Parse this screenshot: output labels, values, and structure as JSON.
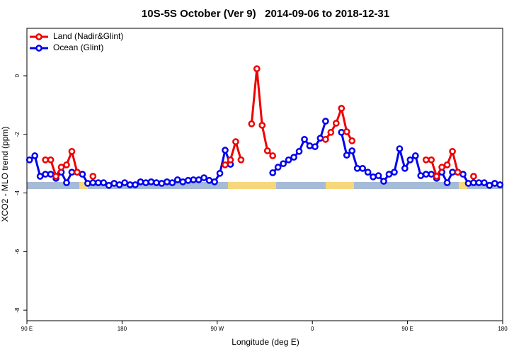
{
  "chart_data": {
    "type": "line",
    "title": "10S-5S October (Ver 9)   2014-09-06 to 2018-12-31",
    "x_label": "Longitude (deg E)",
    "y_label": "XCO2 - MLO trend (ppm)",
    "xlim": [
      90,
      540
    ],
    "xticks": [
      {
        "value": 90,
        "label": "90 E"
      },
      180,
      {
        "value": 270,
        "label": "90 W"
      },
      {
        "value": 360,
        "label": "0"
      },
      {
        "value": 450,
        "label": "90 E"
      },
      {
        "value": 540,
        "label": "180"
      }
    ],
    "ylim": [
      -8.36,
      1.62
    ],
    "yticks": [
      0,
      -2,
      -4,
      -6,
      -8
    ],
    "legend": "top-left",
    "x": [
      92.5,
      97.5,
      102.5,
      107.5,
      112.5,
      117.5,
      122.5,
      127.5,
      132.5,
      137.5,
      142.5,
      147.5,
      152.5,
      157.5,
      162.5,
      167.5,
      172.5,
      177.5,
      182.5,
      187.5,
      192.5,
      197.5,
      202.5,
      207.5,
      212.5,
      217.5,
      222.5,
      227.5,
      232.5,
      237.5,
      242.5,
      247.5,
      252.5,
      257.5,
      262.5,
      267.5,
      272.5,
      277.5,
      282.5,
      287.5,
      292.5,
      297.5,
      302.5,
      307.5,
      312.5,
      317.5,
      322.5,
      327.5,
      332.5,
      337.5,
      342.5,
      347.5,
      352.5,
      357.5,
      362.5,
      367.5,
      372.5,
      377.5,
      382.5,
      387.5,
      392.5,
      397.5,
      402.5,
      407.5,
      412.5,
      417.5,
      422.5,
      427.5,
      432.5,
      437.5,
      442.5,
      447.5,
      452.5,
      457.5,
      462.5,
      467.5,
      472.5,
      477.5,
      482.5,
      487.5,
      492.5,
      497.5,
      502.5,
      507.5,
      512.5,
      517.5,
      522.5,
      527.5,
      532.5,
      537.5
    ],
    "series": [
      {
        "name": "Ocean (Glint)",
        "color": "#0000ee",
        "values": [
          -2.87,
          -2.73,
          -3.43,
          -3.36,
          -3.36,
          -3.5,
          -3.29,
          -3.65,
          -3.29,
          -3.29,
          -3.36,
          -3.67,
          -3.65,
          -3.65,
          -3.65,
          -3.74,
          -3.67,
          -3.72,
          -3.65,
          -3.72,
          -3.72,
          -3.62,
          -3.65,
          -3.62,
          -3.65,
          -3.67,
          -3.62,
          -3.65,
          -3.55,
          -3.62,
          -3.57,
          -3.55,
          -3.55,
          -3.48,
          -3.57,
          -3.62,
          -3.33,
          -2.54,
          -3.02,
          null,
          null,
          null,
          null,
          null,
          null,
          null,
          -3.31,
          -3.12,
          -3.0,
          -2.87,
          -2.78,
          -2.58,
          -2.17,
          -2.39,
          -2.42,
          -2.13,
          -1.55,
          null,
          null,
          -1.93,
          -2.71,
          -2.56,
          -3.16,
          -3.16,
          -3.29,
          -3.45,
          -3.41,
          -3.6,
          -3.36,
          -3.29,
          -2.49,
          -3.16,
          -2.87,
          -2.73,
          -3.41,
          -3.36,
          -3.36,
          -3.5,
          -3.29,
          -3.65,
          -3.29,
          -3.29,
          -3.36,
          -3.67,
          -3.65,
          -3.65,
          -3.65,
          -3.74,
          -3.67,
          -3.72
        ]
      },
      {
        "name": "Land (Nadir&Glint)",
        "color": "#ee0000",
        "values": [
          null,
          null,
          null,
          -2.87,
          -2.87,
          -3.43,
          -3.12,
          -3.04,
          -2.58,
          -3.29,
          null,
          null,
          -3.43,
          null,
          null,
          null,
          null,
          null,
          null,
          null,
          null,
          null,
          null,
          null,
          null,
          null,
          null,
          null,
          null,
          null,
          null,
          null,
          null,
          null,
          null,
          null,
          null,
          -3.04,
          -2.87,
          -2.25,
          -2.87,
          null,
          -1.64,
          0.24,
          -1.69,
          -2.56,
          -2.73,
          null,
          null,
          null,
          null,
          null,
          null,
          null,
          null,
          null,
          -2.17,
          -1.93,
          -1.62,
          -1.11,
          -1.91,
          -2.22,
          null,
          null,
          null,
          null,
          null,
          null,
          null,
          null,
          null,
          null,
          null,
          null,
          null,
          -2.87,
          -2.87,
          -3.43,
          -3.12,
          -3.04,
          -2.58,
          -3.29,
          null,
          null,
          -3.43,
          null,
          null,
          null,
          null,
          null
        ]
      }
    ]
  }
}
